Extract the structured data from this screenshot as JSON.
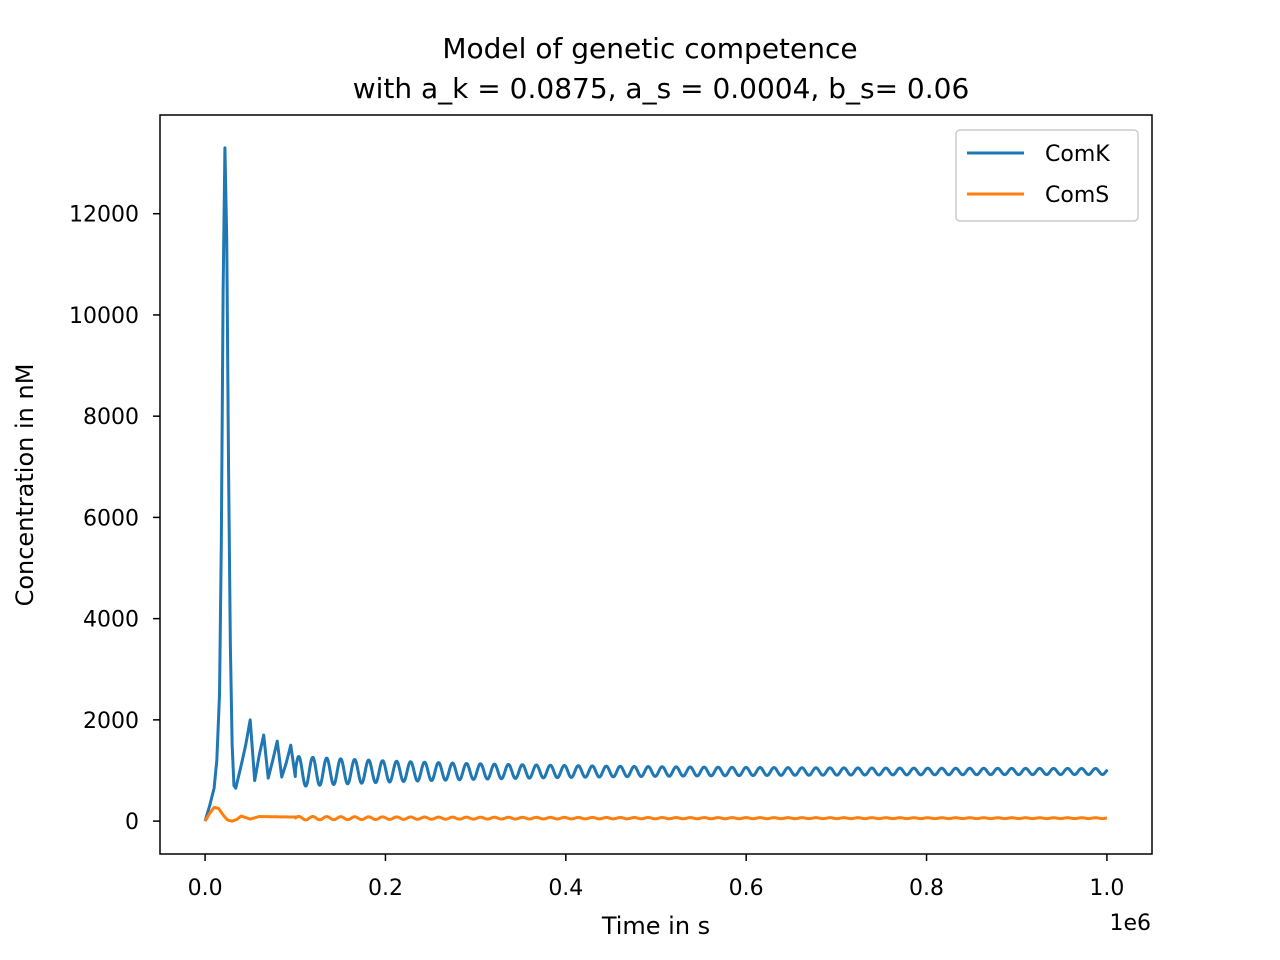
{
  "chart_data": {
    "type": "line",
    "title": "Model of genetic competence",
    "subtitle": "with a_k = 0.0875, a_s = 0.0004, b_s= 0.06",
    "xlabel": "Time in s",
    "ylabel": "Concentration in nM",
    "x_offset_label": "1e6",
    "x_scale": 1000000,
    "xlim": [
      -0.05,
      1.05
    ],
    "ylim": [
      -650,
      13950
    ],
    "x_ticks": [
      0.0,
      0.2,
      0.4,
      0.6,
      0.8,
      1.0
    ],
    "x_tick_labels": [
      "0.0",
      "0.2",
      "0.4",
      "0.6",
      "0.8",
      "1.0"
    ],
    "y_ticks": [
      0,
      2000,
      4000,
      6000,
      8000,
      10000,
      12000
    ],
    "y_tick_labels": [
      "0",
      "2000",
      "4000",
      "6000",
      "8000",
      "10000",
      "12000"
    ],
    "grid": false,
    "legend_position": "top-right",
    "series": [
      {
        "name": "ComK",
        "color": "#1f77b4",
        "x": [
          0,
          0.005,
          0.01,
          0.013,
          0.016,
          0.018,
          0.02,
          0.022,
          0.024,
          0.026,
          0.028,
          0.03,
          0.032,
          0.034,
          0.036,
          0.04,
          0.045,
          0.05,
          0.055,
          0.06,
          0.065,
          0.07,
          0.075,
          0.08,
          0.085,
          0.09,
          0.095,
          0.1,
          0.2,
          0.4,
          0.6,
          0.8,
          1.0
        ],
        "y": [
          0,
          300,
          650,
          1200,
          2500,
          5500,
          10500,
          13300,
          11500,
          7000,
          3500,
          1500,
          700,
          650,
          800,
          1100,
          1500,
          2000,
          800,
          1300,
          1700,
          850,
          1200,
          1580,
          870,
          1150,
          1500,
          880,
          1000,
          980,
          980,
          980,
          970
        ]
      },
      {
        "name": "ComS",
        "color": "#ff7f0e",
        "x": [
          0,
          0.005,
          0.01,
          0.015,
          0.02,
          0.025,
          0.03,
          0.035,
          0.04,
          0.05,
          0.06,
          0.2,
          0.4,
          0.6,
          0.8,
          1.0
        ],
        "y": [
          0,
          150,
          270,
          250,
          120,
          20,
          0,
          30,
          100,
          40,
          90,
          55,
          60,
          60,
          60,
          60
        ]
      }
    ]
  }
}
